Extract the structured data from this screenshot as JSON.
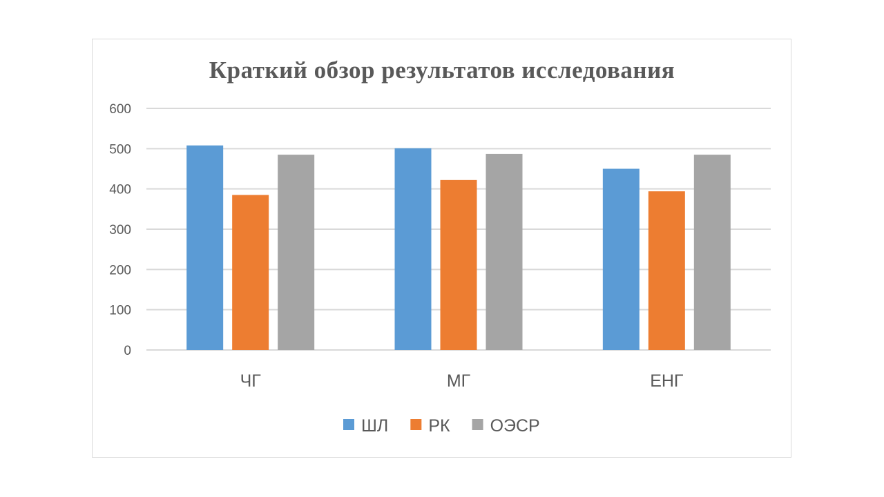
{
  "chart_data": {
    "type": "bar",
    "title": "Краткий обзор результатов исследования",
    "xlabel": "",
    "ylabel": "",
    "ylim": [
      0,
      600
    ],
    "yticks": [
      0,
      100,
      200,
      300,
      400,
      500,
      600
    ],
    "grid": true,
    "legend_position": "bottom",
    "categories": [
      "ЧГ",
      "МГ",
      "ЕНГ"
    ],
    "series": [
      {
        "name": "ШЛ",
        "color": "#5b9bd5",
        "values": [
          508,
          501,
          450
        ]
      },
      {
        "name": "РК",
        "color": "#ed7d31",
        "values": [
          385,
          422,
          394
        ]
      },
      {
        "name": "ОЭСР",
        "color": "#a5a5a5",
        "values": [
          485,
          487,
          485
        ]
      }
    ]
  }
}
